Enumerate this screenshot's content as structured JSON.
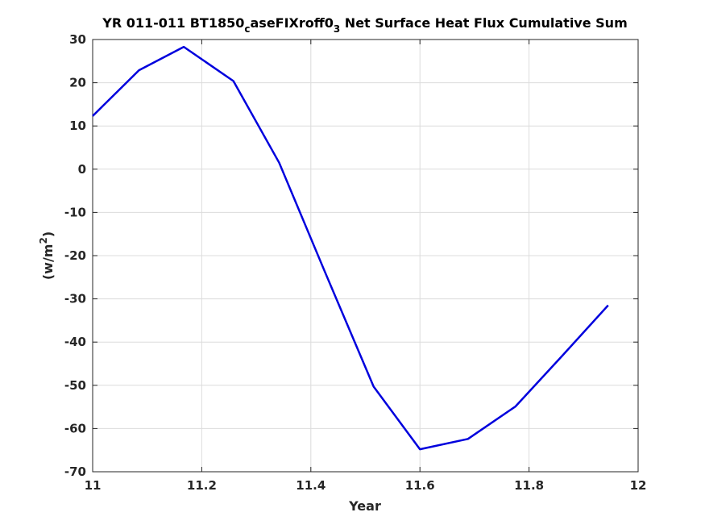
{
  "chart_data": {
    "type": "line",
    "title": {
      "pre": "YR 011-011 BT1850",
      "sub1": "c",
      "mid": "aseFIXroff0",
      "sub2": "3",
      "post": " Net Surface Heat Flux  Cumulative Sum"
    },
    "xlabel": "Year",
    "ylabel": {
      "pre": "(w/m",
      "sup": "2",
      "post": ")"
    },
    "xlim": [
      11,
      12
    ],
    "ylim": [
      -70,
      30
    ],
    "xticks": [
      11,
      11.2,
      11.4,
      11.6,
      11.8,
      12
    ],
    "xtick_labels": [
      "11",
      "11.2",
      "11.4",
      "11.6",
      "11.8",
      "12"
    ],
    "yticks": [
      -70,
      -60,
      -50,
      -40,
      -30,
      -20,
      -10,
      0,
      10,
      20,
      30
    ],
    "ytick_labels": [
      "-70",
      "-60",
      "-50",
      "-40",
      "-30",
      "-20",
      "-10",
      "0",
      "10",
      "20",
      "30"
    ],
    "grid": true,
    "series": [
      {
        "color": "#0000dd",
        "x": [
          11.0,
          11.085,
          11.167,
          11.258,
          11.342,
          11.425,
          11.515,
          11.6,
          11.688,
          11.775,
          11.86,
          11.945
        ],
        "y": [
          12.3,
          22.9,
          28.3,
          20.4,
          1.5,
          -23.5,
          -50.3,
          -64.8,
          -62.4,
          -54.9,
          -43.3,
          -31.5
        ]
      }
    ]
  }
}
